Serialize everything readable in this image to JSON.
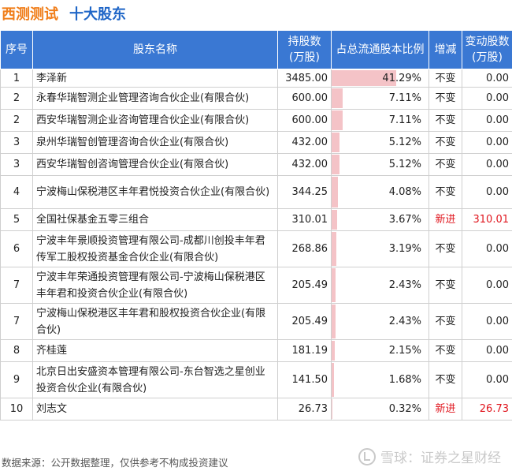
{
  "header": {
    "company": "西测测试",
    "section": "十大股东"
  },
  "table": {
    "columns": {
      "index": "序号",
      "name": "股东名称",
      "shares": "持股数\n(万股)",
      "ratio": "占总流通股本比例",
      "change_type": "增减",
      "change_shares": "变动股数\n(万股)"
    },
    "rows": [
      {
        "index": "1",
        "name": "李泽新",
        "shares": "3485.00",
        "ratio_text": "41.29%",
        "ratio": 41.29,
        "change_type": "不变",
        "change_shares": "0.00",
        "is_new": false
      },
      {
        "index": "2",
        "name": "永春华瑞智测企业管理咨询合伙企业(有限合伙)",
        "shares": "600.00",
        "ratio_text": "7.11%",
        "ratio": 7.11,
        "change_type": "不变",
        "change_shares": "0.00",
        "is_new": false
      },
      {
        "index": "2",
        "name": "西安华瑞智测企业咨询管理合伙企业(有限合伙)",
        "shares": "600.00",
        "ratio_text": "7.11%",
        "ratio": 7.11,
        "change_type": "不变",
        "change_shares": "0.00",
        "is_new": false
      },
      {
        "index": "3",
        "name": "泉州华瑞智创管理咨询合伙企业(有限合伙)",
        "shares": "432.00",
        "ratio_text": "5.12%",
        "ratio": 5.12,
        "change_type": "不变",
        "change_shares": "0.00",
        "is_new": false
      },
      {
        "index": "3",
        "name": "西安华瑞智创咨询管理合伙企业(有限合伙)",
        "shares": "432.00",
        "ratio_text": "5.12%",
        "ratio": 5.12,
        "change_type": "不变",
        "change_shares": "0.00",
        "is_new": false
      },
      {
        "index": "4",
        "name": "宁波梅山保税港区丰年君悦投资合伙企业(有限合伙)",
        "shares": "344.25",
        "ratio_text": "4.08%",
        "ratio": 4.08,
        "change_type": "不变",
        "change_shares": "0.00",
        "is_new": false
      },
      {
        "index": "5",
        "name": "全国社保基金五零三组合",
        "shares": "310.01",
        "ratio_text": "3.67%",
        "ratio": 3.67,
        "change_type": "新进",
        "change_shares": "310.01",
        "is_new": true
      },
      {
        "index": "6",
        "name": "宁波丰年景顺投资管理有限公司-成都川创投丰年君传军工股权投资基金合伙企业(有限合伙)",
        "shares": "268.86",
        "ratio_text": "3.19%",
        "ratio": 3.19,
        "change_type": "不变",
        "change_shares": "0.00",
        "is_new": false
      },
      {
        "index": "7",
        "name": "宁波丰年荣通投资管理有限公司-宁波梅山保税港区丰年君和投资合伙企业(有限合伙)",
        "shares": "205.49",
        "ratio_text": "2.43%",
        "ratio": 2.43,
        "change_type": "不变",
        "change_shares": "0.00",
        "is_new": false
      },
      {
        "index": "7",
        "name": "宁波梅山保税港区丰年君和股权投资合伙企业(有限合伙)",
        "shares": "205.49",
        "ratio_text": "2.43%",
        "ratio": 2.43,
        "change_type": "不变",
        "change_shares": "0.00",
        "is_new": false
      },
      {
        "index": "8",
        "name": "齐桂莲",
        "shares": "181.19",
        "ratio_text": "2.15%",
        "ratio": 2.15,
        "change_type": "不变",
        "change_shares": "0.00",
        "is_new": false
      },
      {
        "index": "9",
        "name": "北京日出安盛资本管理有限公司-东台智选之星创业投资合伙企业(有限合伙)",
        "shares": "141.50",
        "ratio_text": "1.68%",
        "ratio": 1.68,
        "change_type": "不变",
        "change_shares": "0.00",
        "is_new": false
      },
      {
        "index": "10",
        "name": "刘志文",
        "shares": "26.73",
        "ratio_text": "0.32%",
        "ratio": 0.32,
        "change_type": "新进",
        "change_shares": "26.73",
        "is_new": true
      }
    ]
  },
  "footer": {
    "source": "数据来源：公开数据整理，仅供参考不构成投资建议",
    "brand": "雪球：证券之星财经"
  },
  "colors": {
    "company": "#f07e1a",
    "section": "#1f66c7",
    "header_bg": "#3a78d3",
    "bar": "#f4c3c7",
    "new": "#e0161e"
  }
}
